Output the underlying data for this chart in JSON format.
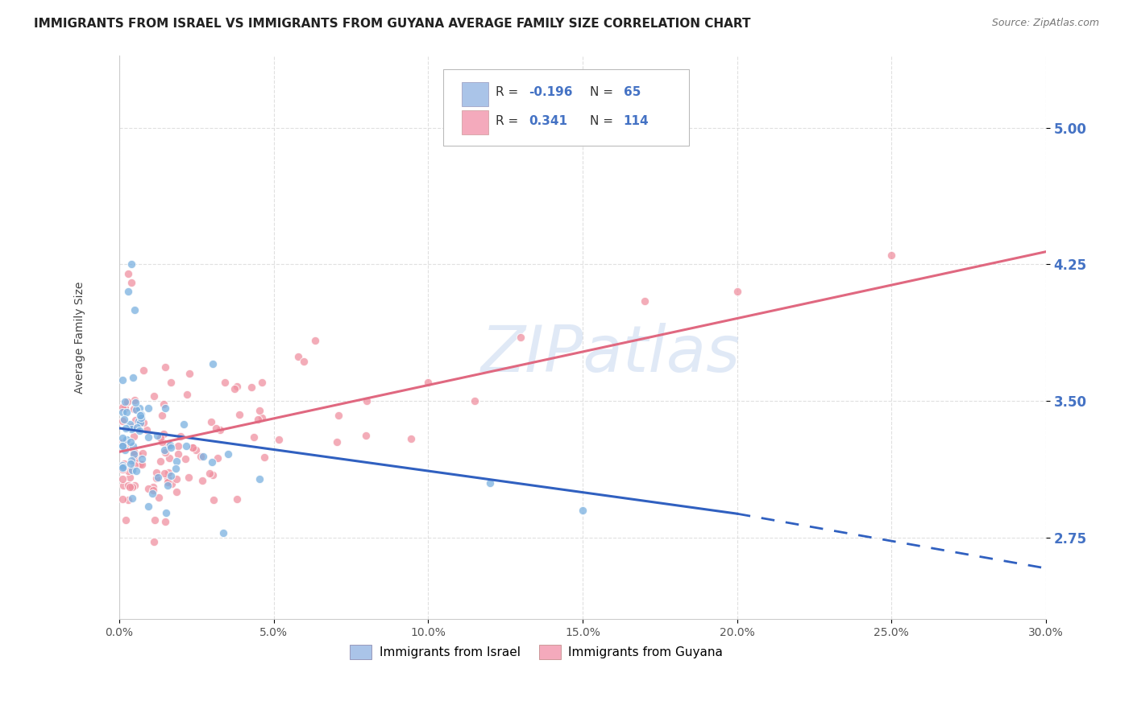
{
  "title": "IMMIGRANTS FROM ISRAEL VS IMMIGRANTS FROM GUYANA AVERAGE FAMILY SIZE CORRELATION CHART",
  "source": "Source: ZipAtlas.com",
  "ylabel": "Average Family Size",
  "xlim": [
    0.0,
    0.3
  ],
  "ylim": [
    2.3,
    5.4
  ],
  "yticks": [
    2.75,
    3.5,
    4.25,
    5.0
  ],
  "xticks": [
    0.0,
    0.05,
    0.1,
    0.15,
    0.2,
    0.25,
    0.3
  ],
  "xtick_labels": [
    "0.0%",
    "5.0%",
    "10.0%",
    "15.0%",
    "20.0%",
    "25.0%",
    "30.0%"
  ],
  "legend1_color": "#aac4e8",
  "legend2_color": "#f4aabc",
  "scatter1_color": "#7ab0e0",
  "scatter2_color": "#f090a0",
  "line1_color": "#3060c0",
  "line2_color": "#e06880",
  "watermark": "ZIPatlas",
  "watermark_color": "#c8d8f0",
  "R1": -0.196,
  "N1": 65,
  "R2": 0.341,
  "N2": 114,
  "background_color": "#ffffff",
  "grid_color": "#dddddd",
  "right_tick_color": "#4472c4",
  "title_fontsize": 11
}
